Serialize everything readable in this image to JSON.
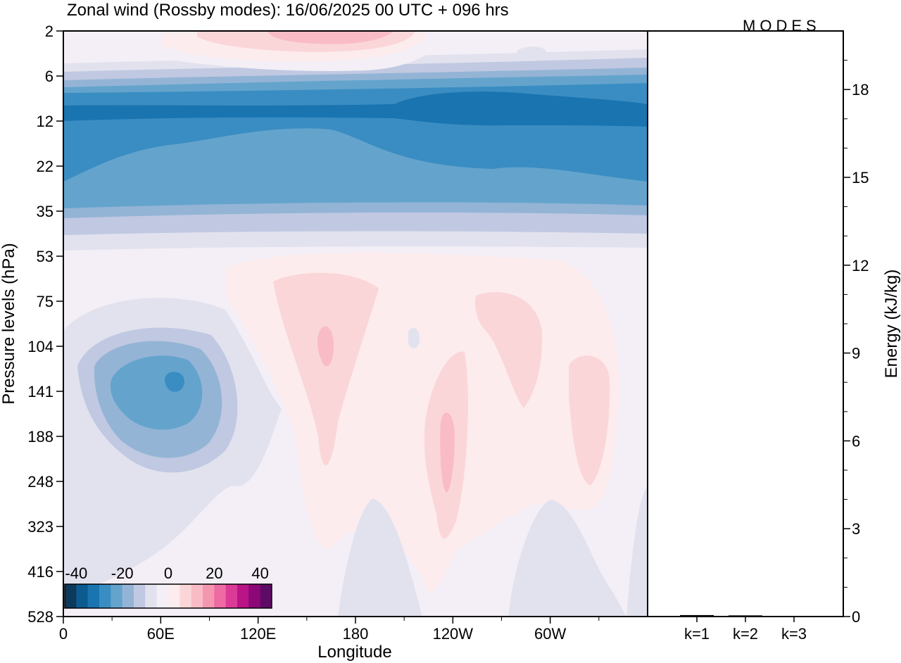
{
  "chart_data": [
    {
      "type": "heatmap",
      "title": "Zonal wind (Rossby modes):  16/06/2025  00 UTC  + 096 hrs",
      "watermark": "MODES",
      "xlabel": "Longitude",
      "ylabel": "Pressure levels (hPa)",
      "x_ticks": [
        "0",
        "60E",
        "120E",
        "180",
        "120W",
        "60W"
      ],
      "x_tick_values_deg": [
        0,
        60,
        120,
        180,
        240,
        300
      ],
      "xlim_deg": [
        0,
        360
      ],
      "y_ticks": [
        "2",
        "6",
        "12",
        "22",
        "35",
        "53",
        "75",
        "104",
        "141",
        "188",
        "248",
        "323",
        "416",
        "528"
      ],
      "y_scale": "model levels (top = 2 hPa, bottom = 528 hPa)",
      "colorbar": {
        "tick_labels": [
          "-40",
          "-20",
          "0",
          "20",
          "40"
        ],
        "range": [
          -45,
          45
        ],
        "step": 5,
        "colors": [
          "#0d3a5c",
          "#0d5a8f",
          "#1a74b0",
          "#3a8dc2",
          "#64a4cc",
          "#94b4d6",
          "#c0c9e1",
          "#e2e2ef",
          "#f4eff6",
          "#fdeced",
          "#fbd6d8",
          "#f9bcc6",
          "#f596b0",
          "#ee6aa3",
          "#dc3a97",
          "#b81486",
          "#8c0778",
          "#5e0b66"
        ]
      },
      "contour_regions": [
        {
          "description": "strong easterly core",
          "lon_range": [
            0,
            360
          ],
          "pressure_hPa": [
            9,
            16
          ],
          "value": -30
        },
        {
          "description": "easterly band",
          "lon_range": [
            0,
            360
          ],
          "pressure_hPa": [
            6,
            35
          ],
          "value": -20
        },
        {
          "description": "upper westerly",
          "lon_range": [
            60,
            230
          ],
          "pressure_hPa": [
            2,
            4
          ],
          "value": 10
        },
        {
          "description": "lower-strat easterly anomaly",
          "lon_range": [
            20,
            120
          ],
          "pressure_hPa": [
            90,
            230
          ],
          "value": -15
        },
        {
          "description": "westerly pockets",
          "lon_range": [
            150,
            340
          ],
          "pressure_hPa": [
            70,
            330
          ],
          "value": 10
        }
      ]
    },
    {
      "type": "bar",
      "title": "",
      "categories": [
        "k=1",
        "k=2",
        "k=3"
      ],
      "values": [
        0.05,
        0.04,
        0.02
      ],
      "ylabel": "Energy (kJ/kg)",
      "ylim": [
        0,
        20
      ],
      "y_ticks": [
        "0",
        "3",
        "6",
        "9",
        "12",
        "15",
        "18"
      ],
      "y_tick_values": [
        0,
        3,
        6,
        9,
        12,
        15,
        18
      ]
    }
  ]
}
